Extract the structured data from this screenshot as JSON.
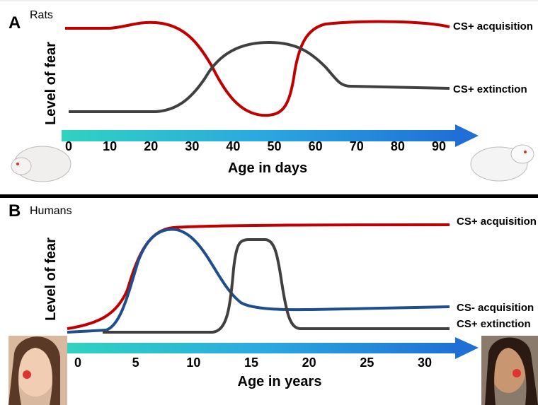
{
  "panels": [
    {
      "letter": "A",
      "species": "Rats",
      "y_label": "Level of fear",
      "x_label": "Age in days",
      "ticks": [
        0,
        10,
        20,
        30,
        40,
        50,
        60,
        70,
        80,
        90
      ],
      "curve_labels": [
        "CS+ acquisition",
        "CS+ extinction"
      ]
    },
    {
      "letter": "B",
      "species": "Humans",
      "y_label": "Level of fear",
      "x_label": "Age in years",
      "ticks": [
        0,
        5,
        10,
        15,
        20,
        25,
        30
      ],
      "curve_labels": [
        "CS+ acquisition",
        "CS- acquisition",
        "CS+ extinction"
      ]
    }
  ]
}
